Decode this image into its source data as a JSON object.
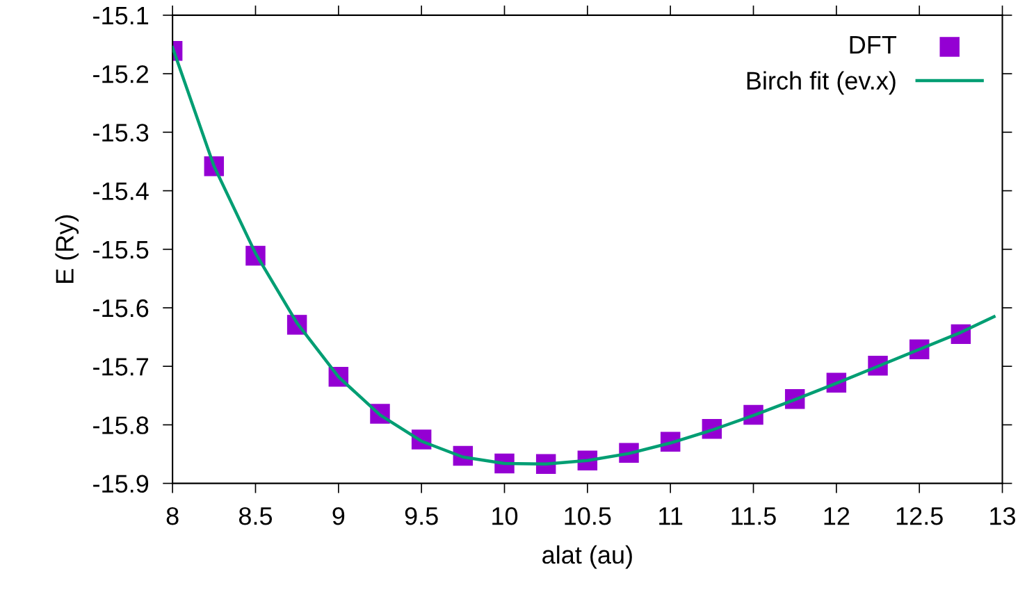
{
  "chart_data": {
    "type": "scatter",
    "xlabel": "alat (au)",
    "ylabel": "E (Ry)",
    "xlim": [
      8,
      13
    ],
    "xticks": [
      8,
      8.5,
      9,
      9.5,
      10,
      10.5,
      11,
      11.5,
      12,
      12.5,
      13
    ],
    "ylim": [
      -15.9,
      -15.1
    ],
    "yticks": [
      -15.9,
      -15.8,
      -15.7,
      -15.6,
      -15.5,
      -15.4,
      -15.3,
      -15.2,
      -15.1
    ],
    "grid": false,
    "legend": "top right",
    "series": [
      {
        "name": "DFT",
        "marker": "square",
        "color": "#9400d3",
        "x": [
          8,
          8.25,
          8.5,
          8.75,
          9,
          9.25,
          9.5,
          9.75,
          10,
          10.25,
          10.5,
          10.75,
          11,
          11.25,
          11.5,
          11.75,
          12,
          12.25,
          12.5,
          12.75
        ],
        "values": [
          -15.161,
          -15.358,
          -15.511,
          -15.629,
          -15.718,
          -15.781,
          -15.825,
          -15.853,
          -15.866,
          -15.867,
          -15.861,
          -15.848,
          -15.829,
          -15.807,
          -15.783,
          -15.756,
          -15.728,
          -15.699,
          -15.671,
          -15.645
        ]
      },
      {
        "name": "Birch fit (ev.x)",
        "type": "line",
        "marker": "none",
        "color": "#009e73",
        "x": [
          8,
          8.25,
          8.5,
          8.75,
          9,
          9.25,
          9.5,
          9.75,
          10,
          10.25,
          10.5,
          10.75,
          11,
          11.25,
          11.5,
          11.75,
          12,
          12.25,
          12.5,
          12.75,
          12.95
        ],
        "values": [
          -15.155,
          -15.358,
          -15.507,
          -15.626,
          -15.718,
          -15.783,
          -15.828,
          -15.855,
          -15.866,
          -15.867,
          -15.861,
          -15.849,
          -15.831,
          -15.809,
          -15.784,
          -15.757,
          -15.729,
          -15.7,
          -15.671,
          -15.642,
          -15.615
        ]
      }
    ]
  }
}
